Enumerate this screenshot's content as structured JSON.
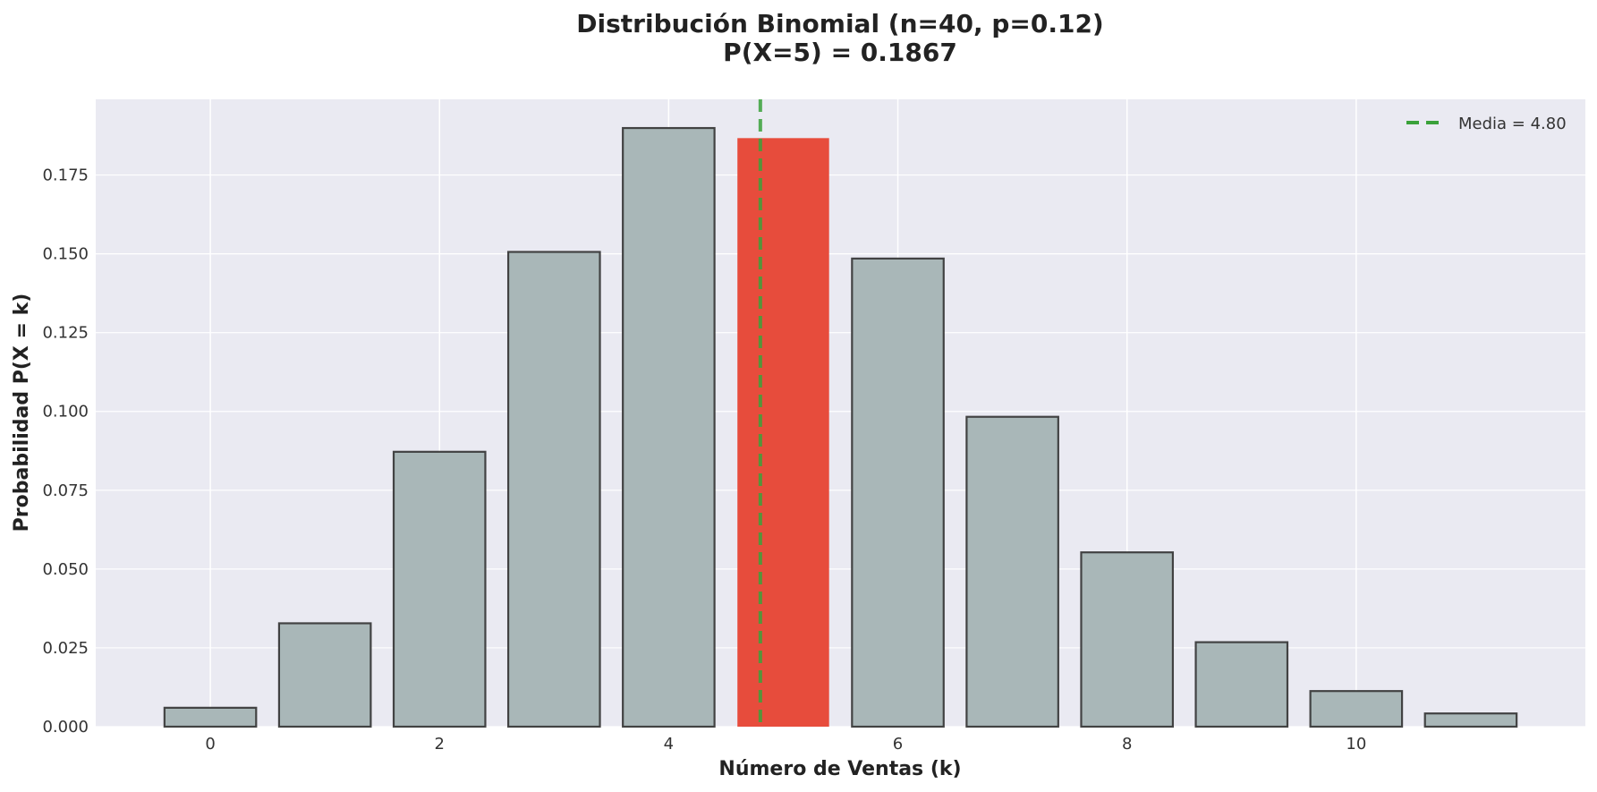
{
  "chart_data": {
    "type": "bar",
    "title": "Distribución Binomial (n=40, p=0.12)",
    "subtitle": "P(X=5) = 0.1867",
    "xlabel": "Número de Ventas (k)",
    "ylabel": "Probabilidad P(X = k)",
    "x": [
      0,
      1,
      2,
      3,
      4,
      5,
      6,
      7,
      8,
      9,
      10,
      11
    ],
    "values": [
      0.006,
      0.0328,
      0.0872,
      0.1506,
      0.1899,
      0.1867,
      0.1485,
      0.0983,
      0.0553,
      0.0268,
      0.0113,
      0.0042
    ],
    "highlight_x": 5,
    "xlim": [
      -1,
      12
    ],
    "ylim": [
      0,
      0.199
    ],
    "xticks": [
      "0",
      "2",
      "4",
      "6",
      "8",
      "10"
    ],
    "yticks": [
      "0.000",
      "0.025",
      "0.050",
      "0.075",
      "0.100",
      "0.125",
      "0.150",
      "0.175"
    ],
    "mean_line": {
      "value": 4.8,
      "label": "Media = 4.80",
      "style": "dashed"
    },
    "legend_position": "top-right",
    "grid": true,
    "colors": {
      "bar": "#a9b7b8",
      "bar_edge": "#333333",
      "highlight": "#e74c3c",
      "mean_line": "#3aa13a",
      "plot_background": "#eaeaf2",
      "grid": "#ffffff"
    }
  }
}
